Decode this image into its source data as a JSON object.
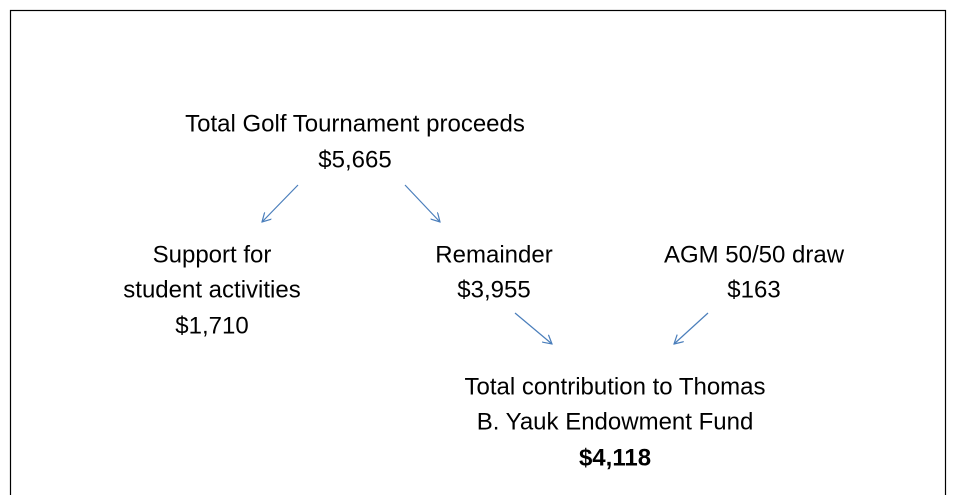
{
  "nodes": [
    {
      "lines": [
        "Total Golf Tournament proceeds"
      ],
      "amount": "$5,665"
    },
    {
      "lines": [
        "Support for",
        "student activities"
      ],
      "amount": "$1,710"
    },
    {
      "lines": [
        "Remainder"
      ],
      "amount": "$3,955"
    },
    {
      "lines": [
        "AGM 50/50 draw"
      ],
      "amount": "$163"
    },
    {
      "lines": [
        "Total contribution to Thomas",
        "B. Yauk Endowment Fund"
      ],
      "amount": "$4,118"
    }
  ]
}
